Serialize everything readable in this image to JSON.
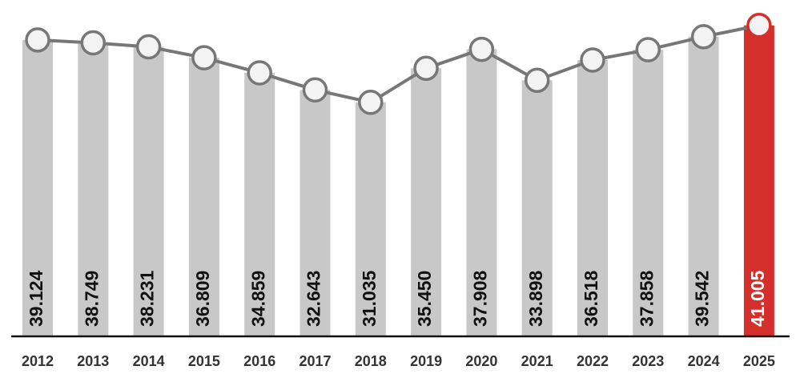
{
  "chart_data": {
    "type": "bar_line",
    "categories": [
      "2012",
      "2013",
      "2014",
      "2015",
      "2016",
      "2017",
      "2018",
      "2019",
      "2020",
      "2021",
      "2022",
      "2023",
      "2024",
      "2025"
    ],
    "values": [
      39.124,
      38.749,
      38.231,
      36.809,
      34.859,
      32.643,
      31.035,
      35.45,
      37.908,
      33.898,
      36.518,
      37.858,
      39.542,
      41.005
    ],
    "value_labels": [
      "39.124",
      "38.749",
      "38.231",
      "36.809",
      "34.859",
      "32.643",
      "31.035",
      "35.450",
      "37.908",
      "33.898",
      "36.518",
      "37.858",
      "39.542",
      "41.005"
    ],
    "colors": [
      "#c8c8c8",
      "#c8c8c8",
      "#c8c8c8",
      "#c8c8c8",
      "#c8c8c8",
      "#c8c8c8",
      "#c8c8c8",
      "#c8c8c8",
      "#c8c8c8",
      "#c8c8c8",
      "#c8c8c8",
      "#c8c8c8",
      "#c8c8c8",
      "#d42f2b"
    ],
    "line_color": "#777777",
    "ylim": [
      0.7,
      44.3
    ]
  }
}
